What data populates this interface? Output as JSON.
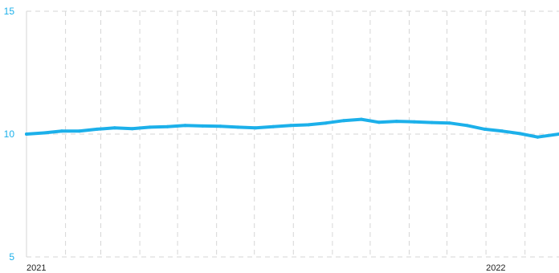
{
  "chart_data": {
    "type": "line",
    "title": "",
    "xlabel": "",
    "ylabel": "",
    "ylim": [
      5,
      15
    ],
    "yticks": [
      {
        "value": 15,
        "label": "15"
      },
      {
        "value": 10,
        "label": "10"
      },
      {
        "value": 5,
        "label": "5"
      }
    ],
    "xlim": [
      "2021-01-01",
      "2022-02-28"
    ],
    "xticks": [
      {
        "value": "2021-01-01",
        "label": "2021"
      },
      {
        "value": "2022-01-01",
        "label": "2022"
      }
    ],
    "grid": {
      "vertical": true,
      "horizontal": true,
      "style": "dashed"
    },
    "reference_line": {
      "value": 10,
      "style": "dashed"
    },
    "colors": {
      "series": "#1cb0ea",
      "grid": "#d6d6d6",
      "tick_label": "#1cb0ea"
    },
    "series": [
      {
        "name": "",
        "x": [
          "2021-01-01",
          "2021-01-15",
          "2021-01-29",
          "2021-02-12",
          "2021-02-26",
          "2021-03-12",
          "2021-03-26",
          "2021-04-09",
          "2021-04-23",
          "2021-05-07",
          "2021-05-21",
          "2021-06-04",
          "2021-06-18",
          "2021-07-02",
          "2021-07-16",
          "2021-07-30",
          "2021-08-13",
          "2021-08-27",
          "2021-09-10",
          "2021-09-24",
          "2021-10-08",
          "2021-10-22",
          "2021-11-05",
          "2021-11-19",
          "2021-12-03",
          "2021-12-17",
          "2021-12-31",
          "2022-01-14",
          "2022-01-28",
          "2022-02-11",
          "2022-02-28"
        ],
        "values": [
          10.0,
          10.05,
          10.12,
          10.12,
          10.2,
          10.25,
          10.22,
          10.28,
          10.3,
          10.35,
          10.33,
          10.32,
          10.28,
          10.25,
          10.3,
          10.35,
          10.38,
          10.45,
          10.55,
          10.6,
          10.48,
          10.52,
          10.5,
          10.47,
          10.45,
          10.35,
          10.2,
          10.12,
          10.02,
          9.88,
          10.0
        ]
      }
    ]
  }
}
